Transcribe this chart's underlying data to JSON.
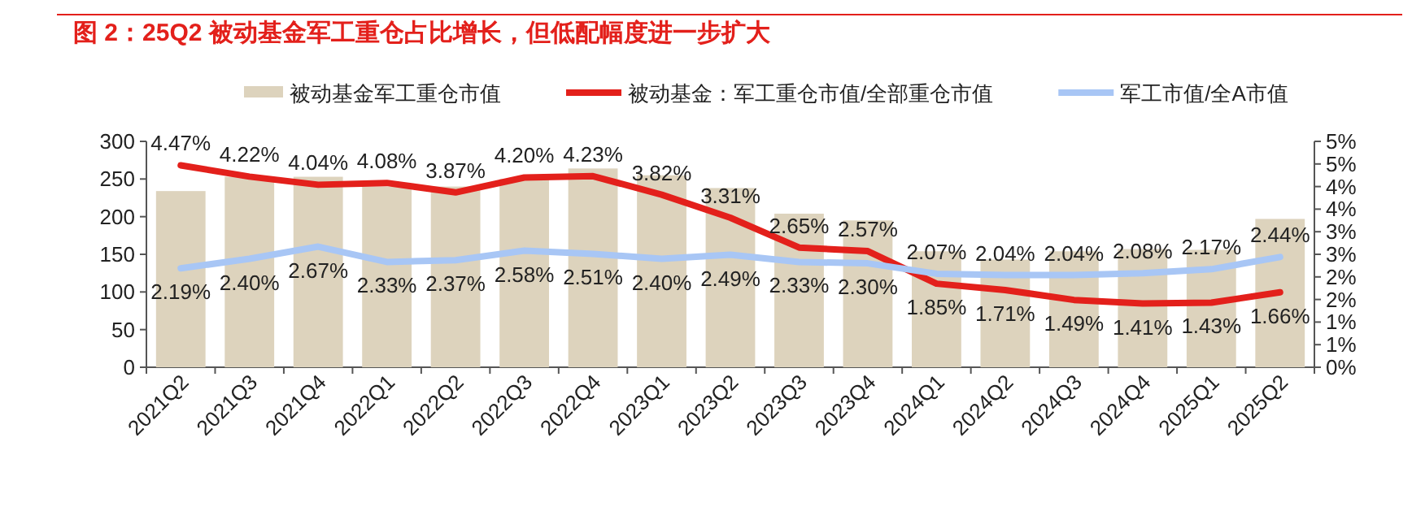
{
  "chart_data": {
    "type": "bar",
    "title": "图 2：25Q2 被动基金军工重仓占比增长，但低配幅度进一步扩大",
    "categories": [
      "2021Q2",
      "2021Q3",
      "2021Q4",
      "2022Q1",
      "2022Q2",
      "2022Q3",
      "2022Q4",
      "2023Q1",
      "2023Q2",
      "2023Q3",
      "2023Q4",
      "2024Q1",
      "2024Q2",
      "2024Q3",
      "2024Q4",
      "2025Q1",
      "2025Q2"
    ],
    "ylim": [
      0,
      300
    ],
    "yticks": [
      0,
      50,
      100,
      150,
      200,
      250,
      300
    ],
    "y2lim": [
      0,
      5
    ],
    "y2ticks": [
      {
        "value": 0,
        "label": "0%"
      },
      {
        "value": 0.5,
        "label": "1%"
      },
      {
        "value": 1,
        "label": "1%"
      },
      {
        "value": 1.5,
        "label": "2%"
      },
      {
        "value": 2,
        "label": "2%"
      },
      {
        "value": 2.5,
        "label": "3%"
      },
      {
        "value": 3,
        "label": "3%"
      },
      {
        "value": 3.5,
        "label": "4%"
      },
      {
        "value": 4,
        "label": "4%"
      },
      {
        "value": 4.5,
        "label": "5%"
      },
      {
        "value": 5,
        "label": "5%"
      }
    ],
    "legend": "top",
    "series": [
      {
        "name": "被动基金军工重仓市值",
        "color": "#ddd3bd",
        "values": [
          234,
          253,
          253,
          240,
          240,
          250,
          264,
          255,
          238,
          204,
          195,
          154,
          143,
          154,
          157,
          156,
          197
        ]
      },
      {
        "name": "被动基金：军工重仓市值/全部重仓市值",
        "type": "line",
        "axis": "y2",
        "color": "#e3201b",
        "values": [
          4.47,
          4.22,
          4.04,
          4.08,
          3.87,
          4.2,
          4.23,
          3.82,
          3.31,
          2.65,
          2.57,
          1.85,
          1.71,
          1.49,
          1.41,
          1.43,
          1.66
        ],
        "value_labels": [
          "4.47%",
          "4.22%",
          "4.04%",
          "4.08%",
          "3.87%",
          "4.20%",
          "4.23%",
          "3.82%",
          "3.31%",
          "2.65%",
          "2.57%",
          "1.85%",
          "1.71%",
          "1.49%",
          "1.41%",
          "1.43%",
          "1.66%"
        ]
      },
      {
        "name": "军工市值/全A市值",
        "type": "line",
        "axis": "y2",
        "color": "#a8c6f5",
        "values": [
          2.19,
          2.4,
          2.67,
          2.33,
          2.37,
          2.58,
          2.51,
          2.4,
          2.49,
          2.33,
          2.3,
          2.07,
          2.04,
          2.04,
          2.08,
          2.17,
          2.44
        ],
        "value_labels": [
          "2.19%",
          "2.40%",
          "2.67%",
          "2.33%",
          "2.37%",
          "2.58%",
          "2.51%",
          "2.40%",
          "2.49%",
          "2.33%",
          "2.30%",
          "2.07%",
          "2.04%",
          "2.04%",
          "2.08%",
          "2.17%",
          "2.44%"
        ]
      }
    ]
  }
}
